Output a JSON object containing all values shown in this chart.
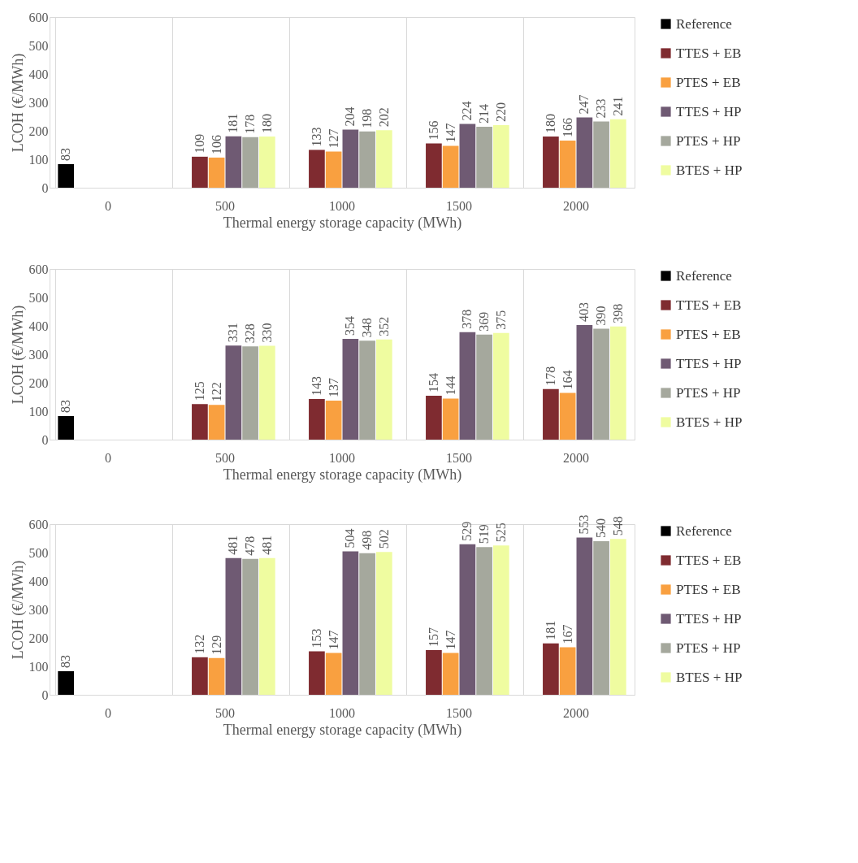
{
  "chart_data": [
    {
      "type": "bar",
      "xlabel": "Thermal energy storage capacity (MWh)",
      "ylabel": "LCOH (€/MWh)",
      "categories": [
        "0",
        "500",
        "1000",
        "1500",
        "2000"
      ],
      "ylim": [
        0,
        600
      ],
      "yticks": [
        0,
        100,
        200,
        300,
        400,
        500,
        600
      ],
      "grid": "x",
      "legend": "right",
      "data_labels": true,
      "series": [
        {
          "name": "Reference",
          "color": "#000000",
          "values": [
            83,
            null,
            null,
            null,
            null
          ]
        },
        {
          "name": "TTES + EB",
          "color": "#7f2b30",
          "values": [
            null,
            109,
            133,
            156,
            180
          ]
        },
        {
          "name": "PTES + EB",
          "color": "#f9a040",
          "values": [
            null,
            106,
            127,
            147,
            166
          ]
        },
        {
          "name": "TTES + HP",
          "color": "#6f5a73",
          "values": [
            null,
            181,
            204,
            224,
            247
          ]
        },
        {
          "name": "PTES + HP",
          "color": "#a5a89d",
          "values": [
            null,
            178,
            198,
            214,
            233
          ]
        },
        {
          "name": "BTES + HP",
          "color": "#effca0",
          "values": [
            null,
            180,
            202,
            220,
            241
          ]
        }
      ]
    },
    {
      "type": "bar",
      "xlabel": "Thermal energy storage capacity (MWh)",
      "ylabel": "LCOH (€/MWh)",
      "categories": [
        "0",
        "500",
        "1000",
        "1500",
        "2000"
      ],
      "ylim": [
        0,
        600
      ],
      "yticks": [
        0,
        100,
        200,
        300,
        400,
        500,
        600
      ],
      "grid": "x",
      "legend": "right",
      "data_labels": true,
      "series": [
        {
          "name": "Reference",
          "color": "#000000",
          "values": [
            83,
            null,
            null,
            null,
            null
          ]
        },
        {
          "name": "TTES + EB",
          "color": "#7f2b30",
          "values": [
            null,
            125,
            143,
            154,
            178
          ]
        },
        {
          "name": "PTES + EB",
          "color": "#f9a040",
          "values": [
            null,
            122,
            137,
            144,
            164
          ]
        },
        {
          "name": "TTES + HP",
          "color": "#6f5a73",
          "values": [
            null,
            331,
            354,
            378,
            403
          ]
        },
        {
          "name": "PTES + HP",
          "color": "#a5a89d",
          "values": [
            null,
            328,
            348,
            369,
            390
          ]
        },
        {
          "name": "BTES + HP",
          "color": "#effca0",
          "values": [
            null,
            330,
            352,
            375,
            398
          ]
        }
      ]
    },
    {
      "type": "bar",
      "xlabel": "Thermal energy storage capacity (MWh)",
      "ylabel": "LCOH (€/MWh)",
      "categories": [
        "0",
        "500",
        "1000",
        "1500",
        "2000"
      ],
      "ylim": [
        0,
        600
      ],
      "yticks": [
        0,
        100,
        200,
        300,
        400,
        500,
        600
      ],
      "grid": "x",
      "legend": "right",
      "data_labels": true,
      "series": [
        {
          "name": "Reference",
          "color": "#000000",
          "values": [
            83,
            null,
            null,
            null,
            null
          ]
        },
        {
          "name": "TTES + EB",
          "color": "#7f2b30",
          "values": [
            null,
            132,
            153,
            157,
            181
          ]
        },
        {
          "name": "PTES + EB",
          "color": "#f9a040",
          "values": [
            null,
            129,
            147,
            147,
            167
          ]
        },
        {
          "name": "TTES + HP",
          "color": "#6f5a73",
          "values": [
            null,
            481,
            504,
            529,
            553
          ]
        },
        {
          "name": "PTES + HP",
          "color": "#a5a89d",
          "values": [
            null,
            478,
            498,
            519,
            540
          ]
        },
        {
          "name": "BTES + HP",
          "color": "#effca0",
          "values": [
            null,
            481,
            502,
            525,
            548
          ]
        }
      ]
    }
  ]
}
